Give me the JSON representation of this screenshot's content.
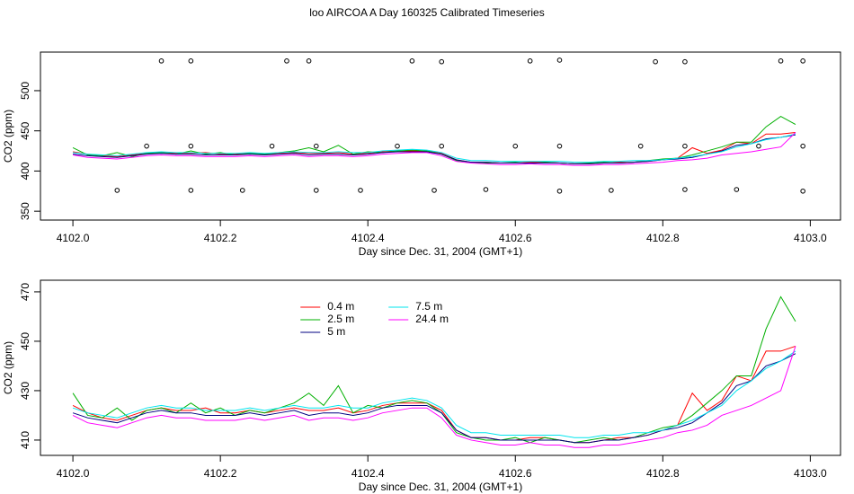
{
  "chart_data": [
    {
      "type": "line",
      "title": "loo AIRCOA A  Day 160325  Calibrated Timeseries",
      "y_label": "CO2 (ppm)",
      "x_label": "Day since Dec. 31, 2004 (GMT+1)",
      "x": [
        4102,
        4102.02,
        4102.04,
        4102.06,
        4102.08,
        4102.1,
        4102.12,
        4102.14,
        4102.16,
        4102.18,
        4102.2,
        4102.22,
        4102.24,
        4102.26,
        4102.28,
        4102.3,
        4102.32,
        4102.34,
        4102.36,
        4102.38,
        4102.4,
        4102.42,
        4102.44,
        4102.46,
        4102.48,
        4102.5,
        4102.52,
        4102.54,
        4102.56,
        4102.58,
        4102.6,
        4102.62,
        4102.64,
        4102.66,
        4102.68,
        4102.7,
        4102.72,
        4102.74,
        4102.76,
        4102.78,
        4102.8,
        4102.82,
        4102.84,
        4102.86,
        4102.88,
        4102.9,
        4102.92,
        4102.94,
        4102.96,
        4102.98
      ],
      "series": [
        {
          "color": "#ff0000",
          "values": [
            424,
            421,
            419,
            418,
            420,
            422,
            423,
            422,
            422,
            423,
            421,
            421,
            422,
            421,
            422,
            423,
            422,
            422,
            423,
            421,
            422,
            424,
            425,
            425,
            425,
            422,
            414,
            411,
            411,
            410,
            410,
            411,
            411,
            410,
            409,
            409,
            410,
            411,
            411,
            412,
            414,
            416,
            429,
            422,
            426,
            436,
            434,
            446,
            446,
            448
          ]
        },
        {
          "color": "#00b000",
          "values": [
            429,
            420,
            419,
            423,
            418,
            422,
            423,
            421,
            425,
            421,
            423,
            420,
            422,
            421,
            423,
            425,
            429,
            424,
            432,
            421,
            424,
            423,
            425,
            426,
            425,
            421,
            413,
            411,
            410,
            410,
            411,
            409,
            411,
            410,
            409,
            410,
            411,
            410,
            411,
            413,
            415,
            416,
            420,
            425,
            430,
            436,
            436,
            455,
            468,
            458
          ]
        },
        {
          "color": "#000080",
          "values": [
            421,
            419,
            418,
            417,
            419,
            421,
            422,
            421,
            421,
            420,
            420,
            420,
            421,
            420,
            421,
            422,
            420,
            421,
            421,
            420,
            421,
            423,
            424,
            424,
            424,
            421,
            414,
            411,
            411,
            410,
            410,
            410,
            410,
            410,
            409,
            409,
            410,
            410,
            411,
            412,
            414,
            415,
            417,
            421,
            425,
            432,
            434,
            440,
            442,
            445
          ]
        },
        {
          "color": "#00e5ee",
          "values": [
            423,
            421,
            420,
            419,
            421,
            423,
            424,
            423,
            423,
            422,
            422,
            422,
            423,
            422,
            423,
            424,
            423,
            423,
            424,
            423,
            423,
            425,
            426,
            427,
            426,
            423,
            416,
            413,
            413,
            412,
            412,
            412,
            412,
            412,
            411,
            411,
            412,
            412,
            413,
            413,
            414,
            416,
            418,
            421,
            424,
            430,
            434,
            439,
            442,
            446
          ]
        },
        {
          "color": "#ff00ff",
          "values": [
            420,
            417,
            416,
            415,
            417,
            419,
            420,
            419,
            419,
            418,
            418,
            418,
            419,
            418,
            419,
            420,
            418,
            419,
            419,
            418,
            419,
            421,
            422,
            423,
            423,
            419,
            412,
            410,
            409,
            408,
            408,
            409,
            408,
            408,
            407,
            407,
            408,
            408,
            409,
            410,
            411,
            413,
            414,
            416,
            420,
            422,
            424,
            427,
            430,
            448
          ]
        }
      ],
      "points": {
        "color": "#000000",
        "x": [
          4102.06,
          4102.1,
          4102.12,
          4102.16,
          4102.16,
          4102.16,
          4102.23,
          4102.27,
          4102.29,
          4102.32,
          4102.33,
          4102.33,
          4102.39,
          4102.44,
          4102.46,
          4102.49,
          4102.5,
          4102.5,
          4102.56,
          4102.6,
          4102.62,
          4102.66,
          4102.66,
          4102.66,
          4102.73,
          4102.77,
          4102.79,
          4102.83,
          4102.83,
          4102.83,
          4102.9,
          4102.93,
          4102.96,
          4102.99,
          4102.99,
          4102.99
        ],
        "y": [
          376,
          431,
          537,
          537,
          431,
          376,
          376,
          431,
          537,
          537,
          431,
          376,
          376,
          431,
          537,
          376,
          431,
          536,
          377,
          431,
          537,
          538,
          431,
          375,
          376,
          431,
          536,
          377,
          431,
          536,
          377,
          431,
          537,
          537,
          431,
          375
        ]
      },
      "xlim": [
        4101.956,
        4103.041
      ],
      "ylim": [
        339,
        548
      ],
      "xticks": [
        {
          "value": 4102,
          "label": "4102.0"
        },
        4102.2,
        4102.4,
        4102.6,
        4102.8,
        {
          "value": 4103,
          "label": "4103.0"
        }
      ],
      "yticks": [
        350,
        400,
        450,
        500
      ]
    },
    {
      "type": "line",
      "y_label": "CO2 (ppm)",
      "x_label": "Day since Dec. 31, 2004 (GMT+1)",
      "legend": "top-left",
      "x": [
        4102,
        4102.02,
        4102.04,
        4102.06,
        4102.08,
        4102.1,
        4102.12,
        4102.14,
        4102.16,
        4102.18,
        4102.2,
        4102.22,
        4102.24,
        4102.26,
        4102.28,
        4102.3,
        4102.32,
        4102.34,
        4102.36,
        4102.38,
        4102.4,
        4102.42,
        4102.44,
        4102.46,
        4102.48,
        4102.5,
        4102.52,
        4102.54,
        4102.56,
        4102.58,
        4102.6,
        4102.62,
        4102.64,
        4102.66,
        4102.68,
        4102.7,
        4102.72,
        4102.74,
        4102.76,
        4102.78,
        4102.8,
        4102.82,
        4102.84,
        4102.86,
        4102.88,
        4102.9,
        4102.92,
        4102.94,
        4102.96,
        4102.98
      ],
      "series": [
        {
          "name": "0.4 m",
          "color": "#ff0000",
          "values": [
            424,
            421,
            419,
            418,
            420,
            422,
            423,
            422,
            422,
            423,
            421,
            421,
            422,
            421,
            422,
            423,
            422,
            422,
            423,
            421,
            422,
            424,
            425,
            425,
            425,
            422,
            414,
            411,
            411,
            410,
            410,
            411,
            411,
            410,
            409,
            409,
            410,
            411,
            411,
            412,
            414,
            416,
            429,
            422,
            426,
            436,
            434,
            446,
            446,
            448
          ]
        },
        {
          "name": "2.5 m",
          "color": "#00b000",
          "values": [
            429,
            420,
            419,
            423,
            418,
            422,
            423,
            421,
            425,
            421,
            423,
            420,
            422,
            421,
            423,
            425,
            429,
            424,
            432,
            421,
            424,
            423,
            425,
            426,
            425,
            421,
            413,
            411,
            410,
            410,
            411,
            409,
            411,
            410,
            409,
            410,
            411,
            410,
            411,
            413,
            415,
            416,
            420,
            425,
            430,
            436,
            436,
            455,
            468,
            458
          ]
        },
        {
          "name": "5 m",
          "color": "#000080",
          "values": [
            421,
            419,
            418,
            417,
            419,
            421,
            422,
            421,
            421,
            420,
            420,
            420,
            421,
            420,
            421,
            422,
            420,
            421,
            421,
            420,
            421,
            423,
            424,
            424,
            424,
            421,
            414,
            411,
            411,
            410,
            410,
            410,
            410,
            410,
            409,
            409,
            410,
            410,
            411,
            412,
            414,
            415,
            417,
            421,
            425,
            432,
            434,
            440,
            442,
            445
          ]
        },
        {
          "name": "7.5 m",
          "color": "#00e5ee",
          "values": [
            423,
            421,
            420,
            419,
            421,
            423,
            424,
            423,
            423,
            422,
            422,
            422,
            423,
            422,
            423,
            424,
            423,
            423,
            424,
            423,
            423,
            425,
            426,
            427,
            426,
            423,
            416,
            413,
            413,
            412,
            412,
            412,
            412,
            412,
            411,
            411,
            412,
            412,
            413,
            413,
            414,
            416,
            418,
            421,
            424,
            430,
            434,
            439,
            442,
            446
          ]
        },
        {
          "name": "24.4 m",
          "color": "#ff00ff",
          "values": [
            420,
            417,
            416,
            415,
            417,
            419,
            420,
            419,
            419,
            418,
            418,
            418,
            419,
            418,
            419,
            420,
            418,
            419,
            419,
            418,
            419,
            421,
            422,
            423,
            423,
            419,
            412,
            410,
            409,
            408,
            408,
            409,
            408,
            408,
            407,
            407,
            408,
            408,
            409,
            410,
            411,
            413,
            414,
            416,
            420,
            422,
            424,
            427,
            430,
            448
          ]
        }
      ],
      "xlim": [
        4101.956,
        4103.041
      ],
      "ylim": [
        403.8,
        474.7
      ],
      "xticks": [
        {
          "value": 4102,
          "label": "4102.0"
        },
        4102.2,
        4102.4,
        4102.6,
        4102.8,
        {
          "value": 4103,
          "label": "4103.0"
        }
      ],
      "yticks": [
        410,
        430,
        450,
        470
      ]
    }
  ]
}
